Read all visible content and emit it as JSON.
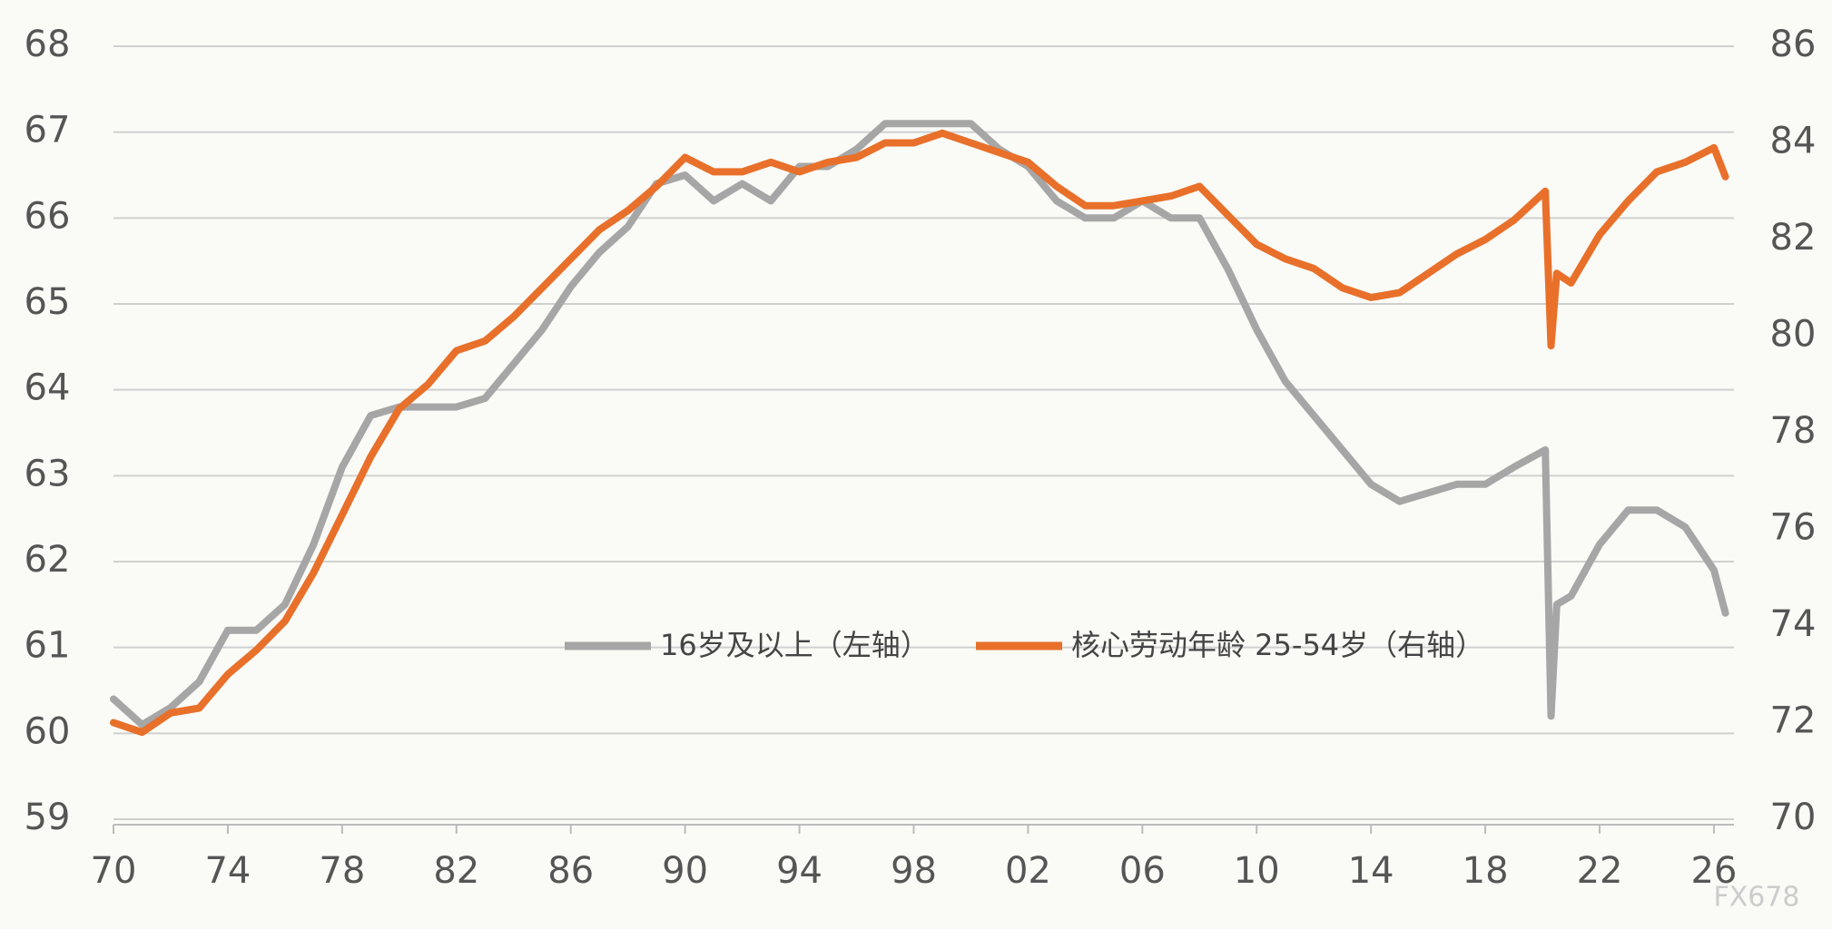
{
  "chart_data": {
    "type": "line",
    "x": [
      1970,
      1971,
      1972,
      1973,
      1974,
      1975,
      1976,
      1977,
      1978,
      1979,
      1980,
      1981,
      1982,
      1983,
      1984,
      1985,
      1986,
      1987,
      1988,
      1989,
      1990,
      1991,
      1992,
      1993,
      1994,
      1995,
      1996,
      1997,
      1998,
      1999,
      2000,
      2001,
      2002,
      2003,
      2004,
      2005,
      2006,
      2007,
      2008,
      2009,
      2010,
      2011,
      2012,
      2013,
      2014,
      2015,
      2016,
      2017,
      2018,
      2019,
      2020.1,
      2020.3,
      2020.5,
      2021,
      2022,
      2023,
      2024,
      2025,
      2026,
      2026.4
    ],
    "series": [
      {
        "name": "16岁及以上（左轴）",
        "color": "#a6a6a6",
        "values": [
          60.4,
          60.1,
          60.3,
          60.6,
          61.2,
          61.2,
          61.5,
          62.2,
          63.1,
          63.7,
          63.8,
          63.8,
          63.8,
          63.9,
          64.3,
          64.7,
          65.2,
          65.6,
          65.9,
          66.4,
          66.5,
          66.2,
          66.4,
          66.2,
          66.6,
          66.6,
          66.8,
          67.1,
          67.1,
          67.1,
          67.1,
          66.8,
          66.6,
          66.2,
          66.0,
          66.0,
          66.2,
          66.0,
          66.0,
          65.4,
          64.7,
          64.1,
          63.7,
          63.3,
          62.9,
          62.7,
          62.8,
          62.9,
          62.9,
          63.1,
          63.3,
          60.2,
          61.5,
          61.6,
          62.2,
          62.6,
          62.6,
          62.4,
          61.9,
          61.4
        ]
      },
      {
        "name": "核心劳动年龄 25-54岁（右轴）",
        "color": "#e8702a",
        "axis": "y2",
        "values": [
          72.0,
          71.8,
          72.2,
          72.3,
          73.0,
          73.5,
          74.1,
          75.1,
          76.3,
          77.5,
          78.5,
          79.0,
          79.7,
          79.9,
          80.4,
          81.0,
          81.6,
          82.2,
          82.6,
          83.1,
          83.7,
          83.4,
          83.4,
          83.6,
          83.4,
          83.6,
          83.7,
          84.0,
          84.0,
          84.2,
          84.0,
          83.8,
          83.6,
          83.1,
          82.7,
          82.7,
          82.8,
          82.9,
          83.1,
          82.5,
          81.9,
          81.6,
          81.4,
          81.0,
          80.8,
          80.9,
          81.3,
          81.7,
          82.0,
          82.4,
          83.0,
          79.8,
          81.3,
          81.1,
          82.1,
          82.8,
          83.4,
          83.6,
          83.9,
          83.3
        ]
      }
    ],
    "xlim": [
      1970,
      2026.7
    ],
    "xticks": [
      {
        "value": 1970,
        "label": "70"
      },
      {
        "value": 1974,
        "label": "74"
      },
      {
        "value": 1978,
        "label": "78"
      },
      {
        "value": 1982,
        "label": "82"
      },
      {
        "value": 1986,
        "label": "86"
      },
      {
        "value": 1990,
        "label": "90"
      },
      {
        "value": 1994,
        "label": "94"
      },
      {
        "value": 1998,
        "label": "98"
      },
      {
        "value": 2002,
        "label": "02"
      },
      {
        "value": 2006,
        "label": "06"
      },
      {
        "value": 2010,
        "label": "10"
      },
      {
        "value": 2014,
        "label": "14"
      },
      {
        "value": 2018,
        "label": "18"
      },
      {
        "value": 2022,
        "label": "22"
      },
      {
        "value": 2026,
        "label": "26"
      }
    ],
    "ylim": [
      59,
      68
    ],
    "yticks": [
      59,
      60,
      61,
      62,
      63,
      64,
      65,
      66,
      67,
      68
    ],
    "y2lim": [
      70,
      86
    ],
    "y2ticks": [
      70,
      72,
      74,
      76,
      78,
      80,
      82,
      84,
      86
    ],
    "grid": true,
    "watermark": "FX678"
  }
}
